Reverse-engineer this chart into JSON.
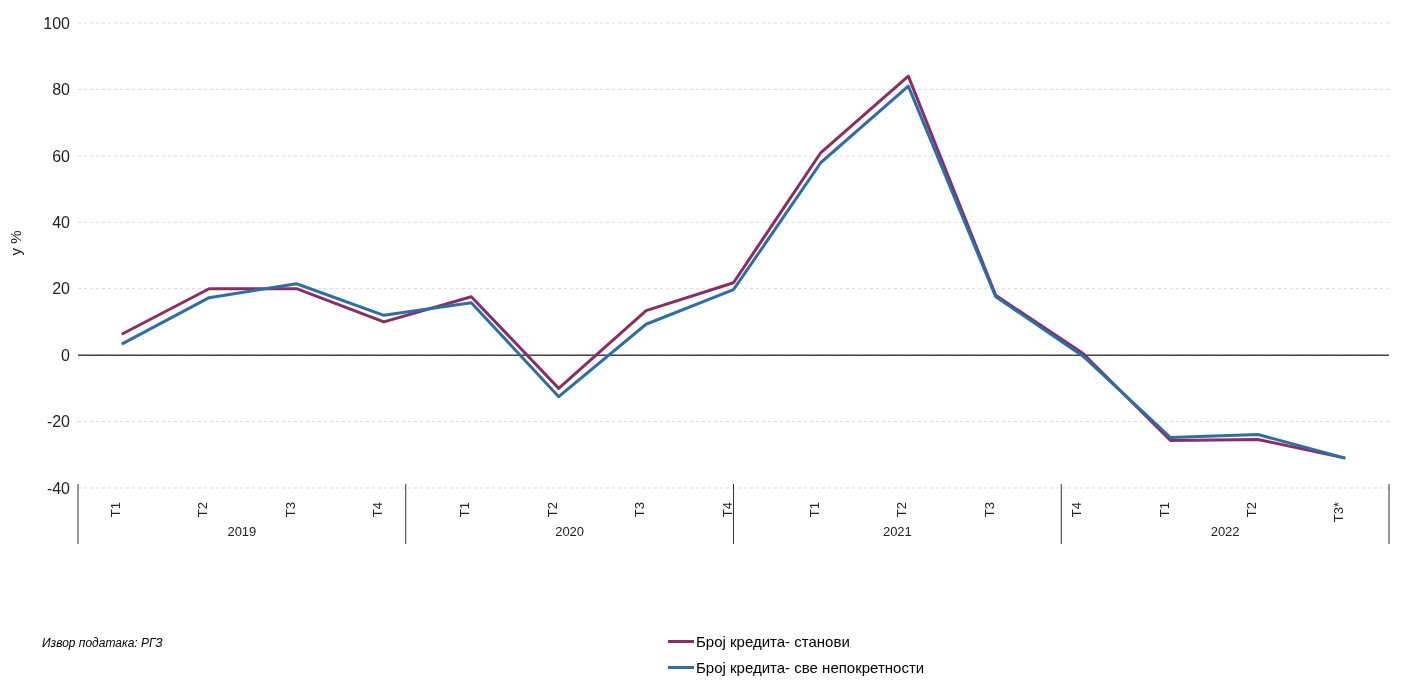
{
  "chart_data": {
    "type": "line",
    "ylabel": "у %",
    "categories": [
      "T1",
      "T2",
      "T3",
      "T4",
      "T1",
      "T2",
      "T3",
      "T4",
      "T1",
      "T2",
      "T3",
      "T4",
      "T1",
      "T2",
      "T3*"
    ],
    "series": [
      {
        "name": "Број кредита- станови",
        "color": "#8c2d62",
        "values": [
          6.3,
          20,
          20,
          10,
          17.6,
          -10,
          13.4,
          21.8,
          61,
          84,
          18,
          0.5,
          -25.7,
          -25.4,
          -31
        ]
      },
      {
        "name": "Број кредита- све непокретности",
        "color": "#2e6da6",
        "values": [
          3.3,
          17.3,
          21.5,
          12,
          15.8,
          -12.5,
          9.3,
          19.7,
          58,
          81,
          17.6,
          -0.3,
          -24.8,
          -23.9,
          -31
        ]
      }
    ],
    "ylim": [
      -40,
      100
    ],
    "yticks": [
      -40,
      -20,
      0,
      20,
      40,
      60,
      80,
      100
    ],
    "grid": "y",
    "legend": "bottom",
    "marker": "none",
    "line_style": "solid",
    "ref_lines": [
      {
        "axis": "y",
        "value": 0,
        "color": "#444444"
      }
    ],
    "annotations": [
      "Извор података: РГЗ",
      "2019",
      "2020",
      "2021",
      "2022"
    ]
  }
}
